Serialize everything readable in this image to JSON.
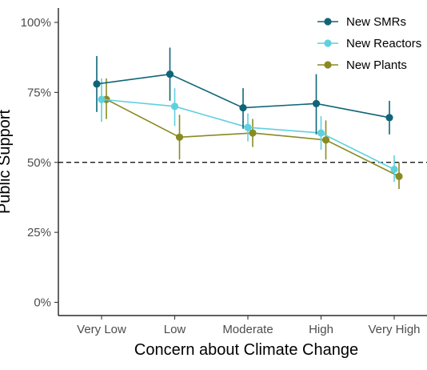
{
  "chart_data": {
    "type": "line",
    "xlabel": "Concern about Climate Change",
    "ylabel": "Public Support",
    "categories": [
      "Very Low",
      "Low",
      "Moderate",
      "High",
      "Very High"
    ],
    "yticks": [
      "0%",
      "25%",
      "50%",
      "75%",
      "100%"
    ],
    "ylim": [
      -0.05,
      1.05
    ],
    "reference_line": 0.5,
    "grid": false,
    "legend_position": "top-right",
    "series": [
      {
        "name": "New SMRs",
        "color": "#0f6577",
        "values": [
          0.78,
          0.815,
          0.695,
          0.71,
          0.66
        ],
        "lower": [
          0.68,
          0.72,
          0.62,
          0.6,
          0.6
        ],
        "upper": [
          0.88,
          0.91,
          0.765,
          0.815,
          0.72
        ]
      },
      {
        "name": "New Reactors",
        "color": "#5fd0de",
        "values": [
          0.725,
          0.7,
          0.625,
          0.605,
          0.475
        ],
        "lower": [
          0.645,
          0.63,
          0.575,
          0.545,
          0.43
        ],
        "upper": [
          0.8,
          0.765,
          0.675,
          0.665,
          0.525
        ]
      },
      {
        "name": "New Plants",
        "color": "#8a8a23",
        "values": [
          0.725,
          0.59,
          0.605,
          0.58,
          0.45
        ],
        "lower": [
          0.655,
          0.51,
          0.555,
          0.51,
          0.405
        ],
        "upper": [
          0.8,
          0.67,
          0.655,
          0.65,
          0.5
        ]
      }
    ]
  }
}
